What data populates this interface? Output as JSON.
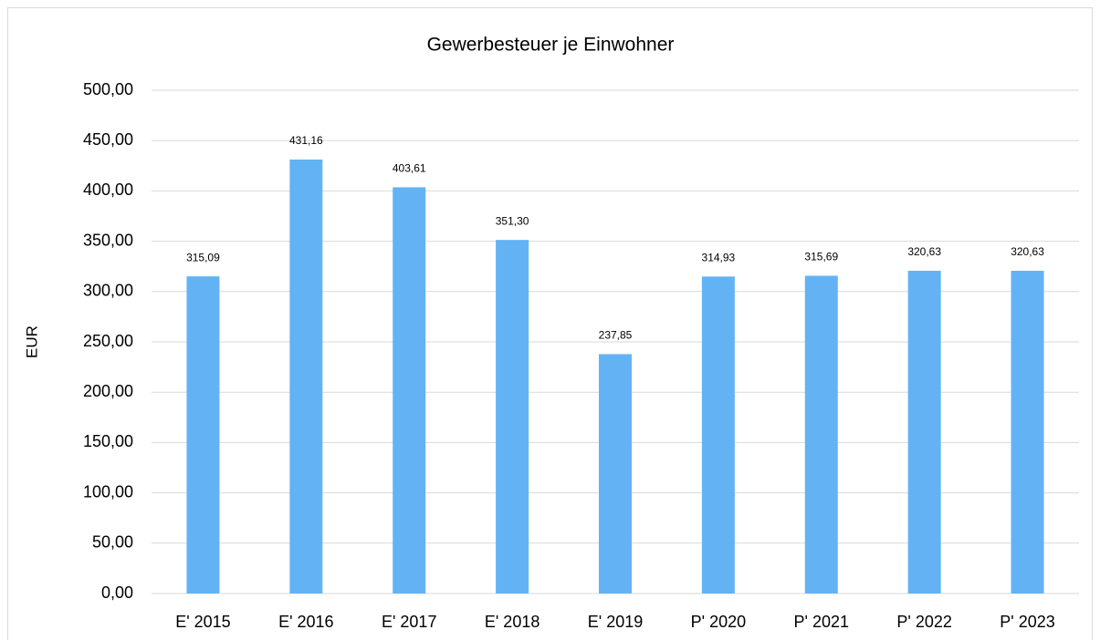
{
  "chart_data": {
    "type": "bar",
    "title": "Gewerbesteuer je Einwohner",
    "y_label": "EUR",
    "categories": [
      "E' 2015",
      "E' 2016",
      "E' 2017",
      "E' 2018",
      "E' 2019",
      "P' 2020",
      "P' 2021",
      "P' 2022",
      "P' 2023"
    ],
    "values": [
      315.09,
      431.16,
      403.61,
      351.3,
      237.85,
      314.93,
      315.69,
      320.63,
      320.63
    ],
    "value_labels": [
      "315,09",
      "431,16",
      "403,61",
      "351,30",
      "237,85",
      "314,93",
      "315,69",
      "320,63",
      "320,63"
    ],
    "color": "#63b3f4",
    "ylim": [
      0,
      500
    ],
    "yticks": [
      {
        "value": 0,
        "label": "0,00"
      },
      {
        "value": 50,
        "label": "50,00"
      },
      {
        "value": 100,
        "label": "100,00"
      },
      {
        "value": 150,
        "label": "150,00"
      },
      {
        "value": 200,
        "label": "200,00"
      },
      {
        "value": 250,
        "label": "250,00"
      },
      {
        "value": 300,
        "label": "300,00"
      },
      {
        "value": 350,
        "label": "350,00"
      },
      {
        "value": 400,
        "label": "400,00"
      },
      {
        "value": 450,
        "label": "450,00"
      },
      {
        "value": 500,
        "label": "500,00"
      }
    ],
    "grid": true
  }
}
